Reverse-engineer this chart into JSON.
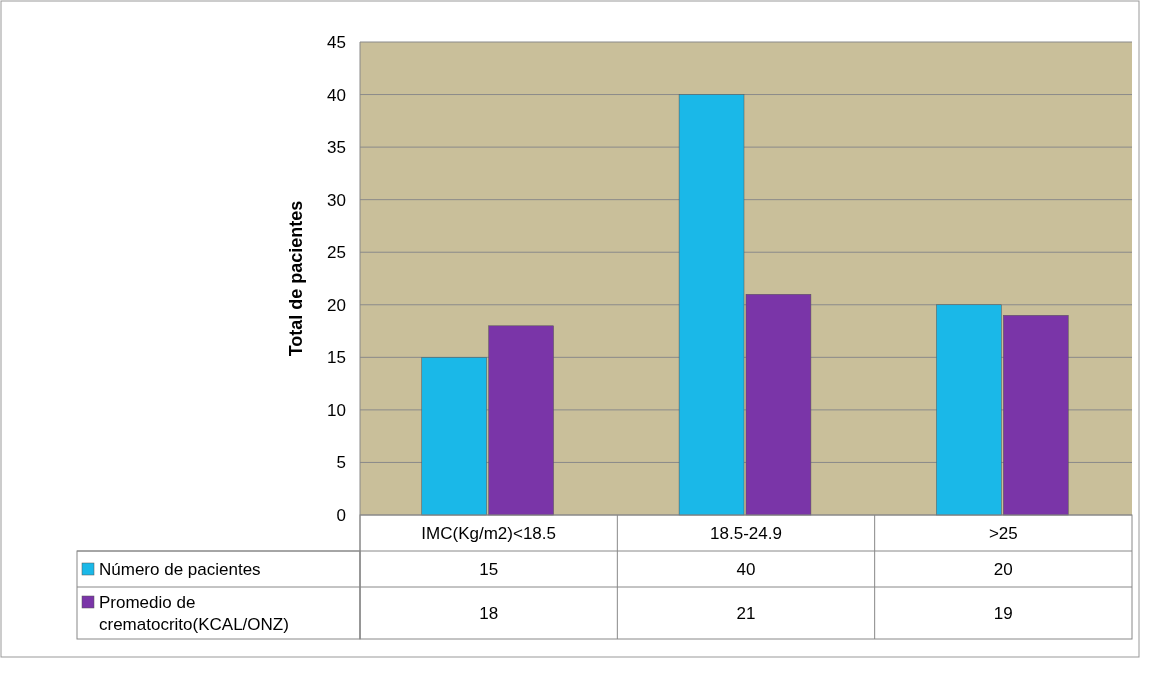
{
  "chart_data": {
    "type": "bar",
    "ylabel": "Total de pacientes",
    "categories": [
      "IMC(Kg/m2)<18.5",
      "18.5-24.9",
      ">25"
    ],
    "series": [
      {
        "name": "Número de pacientes",
        "color": "#1ab8e8",
        "values": [
          15,
          40,
          20
        ]
      },
      {
        "name": "Promedio de crematocrito(KCAL/ONZ)",
        "color": "#7a35a8",
        "values": [
          18,
          21,
          19
        ]
      }
    ],
    "ylim": [
      0,
      45
    ],
    "yticks": [
      0,
      5,
      10,
      15,
      20,
      25,
      30,
      35,
      40,
      45
    ],
    "grid": "y",
    "legend": "bottom",
    "data_labels": true
  }
}
